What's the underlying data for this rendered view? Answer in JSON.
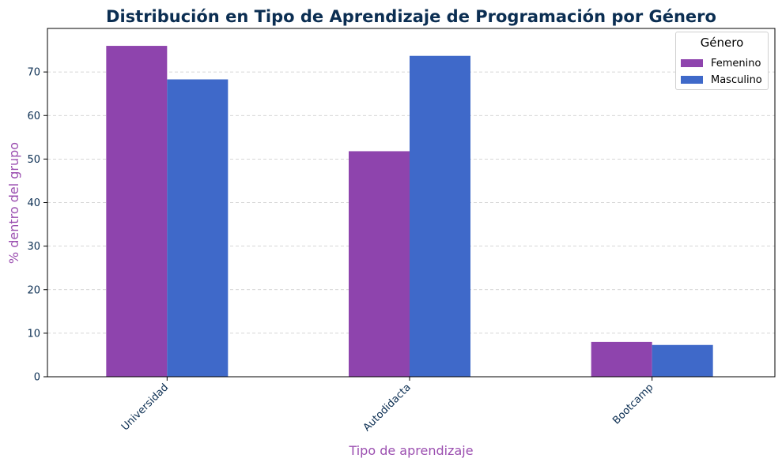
{
  "chart_data": {
    "type": "bar",
    "title": "Distribución en Tipo de Aprendizaje de Programación por Género",
    "xlabel": "Tipo de aprendizaje",
    "ylabel": "% dentro del grupo",
    "categories": [
      "Universidad",
      "Autodidacta",
      "Bootcamp"
    ],
    "series": [
      {
        "name": "Femenino",
        "values": [
          76.0,
          51.8,
          8.0
        ],
        "color": "#8e44ad"
      },
      {
        "name": "Masculino",
        "values": [
          68.3,
          73.7,
          7.3
        ],
        "color": "#3f69c9"
      }
    ],
    "ylim": [
      0,
      80
    ],
    "yticks": [
      0,
      10,
      20,
      30,
      40,
      50,
      60,
      70
    ],
    "grid": "y-dashed",
    "legend_title": "Género",
    "legend_position": "top-right",
    "colors": {
      "title": "#0b2e52",
      "axis_label": "#9b4fb0",
      "tick_label": "#0b2e52"
    }
  }
}
